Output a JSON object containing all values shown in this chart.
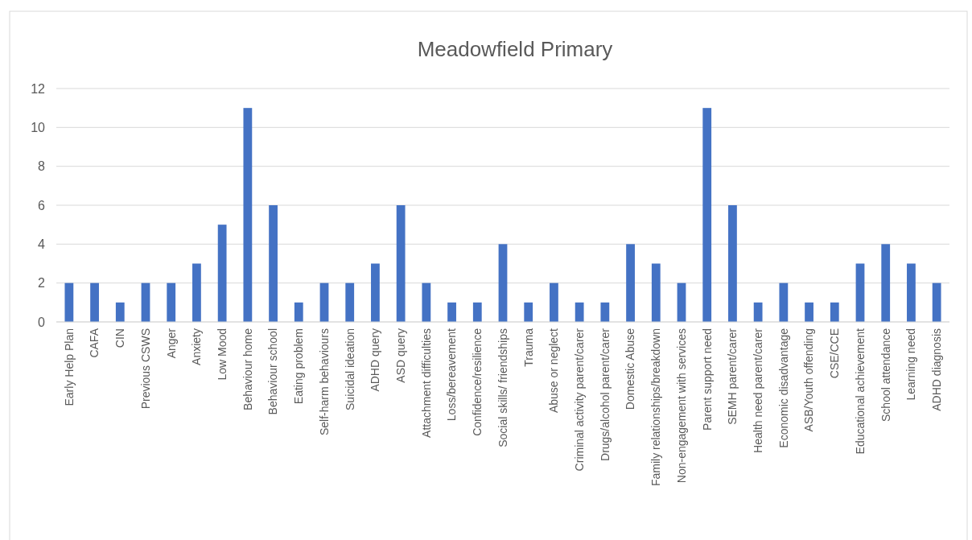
{
  "chart_data": {
    "type": "bar",
    "title": "Meadowfield Primary",
    "categories": [
      "Early Help Plan",
      "CAFA",
      "CIN",
      "Previous CSWS",
      "Anger",
      "Anxiety",
      "Low Mood",
      "Behaviour home",
      "Behaviour school",
      "Eating problem",
      "Self-harm behaviours",
      "Suicidal ideation",
      "ADHD query",
      "ASD query",
      "Attachment difficulties",
      "Loss/bereavement",
      "Confidence/resilience",
      "Social skills/ friendships",
      "Trauma",
      "Abuse or neglect",
      "Criminal activity parent/carer",
      "Drugs/alcohol parent/carer",
      "Domestic Abuse",
      "Family relationships/breakdown",
      "Non-engagement with services",
      "Parent support need",
      "SEMH parent/carer",
      "Health need parent/carer",
      "Economic disadvantage",
      "ASB/Youth offending",
      "CSE/CCE",
      "Educational achievement",
      "School attendance",
      "Learning need",
      "ADHD diagnosis"
    ],
    "values": [
      2,
      2,
      1,
      2,
      2,
      3,
      5,
      11,
      6,
      1,
      2,
      2,
      3,
      6,
      2,
      1,
      1,
      4,
      1,
      2,
      1,
      1,
      4,
      3,
      2,
      11,
      6,
      1,
      2,
      1,
      1,
      3,
      4,
      3,
      2
    ],
    "color": "#4472c4",
    "ylim": [
      0,
      12
    ],
    "yticks": [
      0,
      2,
      4,
      6,
      8,
      10,
      12
    ],
    "grid": "y"
  }
}
